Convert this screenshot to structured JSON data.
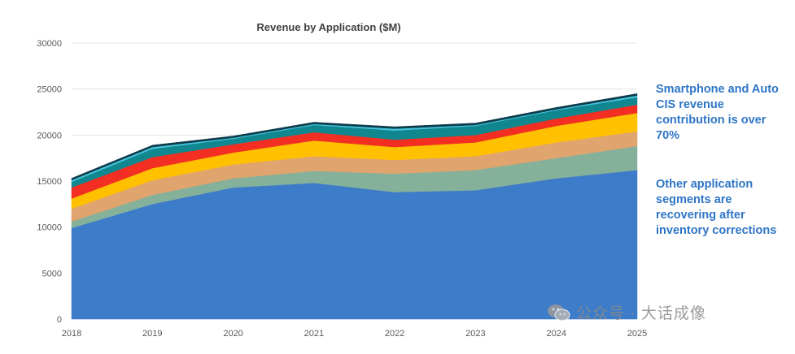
{
  "chart_data": {
    "type": "area",
    "stacked": true,
    "title": "Revenue by Application ($M)",
    "x": [
      "2018",
      "2019",
      "2020",
      "2021",
      "2022",
      "2023",
      "2024",
      "2025"
    ],
    "ylim": [
      0,
      30000
    ],
    "yticks": [
      0,
      5000,
      10000,
      15000,
      20000,
      25000,
      30000
    ],
    "grid": true,
    "legend": "none",
    "series": [
      {
        "color": "#3d7cc9",
        "values": [
          9900,
          12500,
          14300,
          14800,
          13800,
          14000,
          15300,
          16200
        ]
      },
      {
        "color": "#85b09a",
        "values": [
          700,
          1000,
          1000,
          1300,
          2000,
          2200,
          2200,
          2600
        ]
      },
      {
        "color": "#e0a46e",
        "values": [
          1400,
          1600,
          1500,
          1600,
          1500,
          1500,
          1700,
          1600
        ]
      },
      {
        "color": "#ffc000",
        "values": [
          1100,
          1300,
          1300,
          1700,
          1400,
          1500,
          1800,
          2000
        ]
      },
      {
        "color": "#f32e23",
        "values": [
          1200,
          1200,
          900,
          900,
          800,
          800,
          800,
          900
        ]
      },
      {
        "color": "#10878e",
        "values": [
          600,
          900,
          600,
          800,
          1000,
          1000,
          900,
          800
        ]
      },
      {
        "color": "#45c4dd",
        "values": [
          200,
          200,
          100,
          100,
          200,
          100,
          100,
          200
        ]
      },
      {
        "color": "#0d3c4c",
        "values": [
          200,
          200,
          200,
          200,
          200,
          200,
          200,
          200
        ]
      }
    ]
  },
  "callouts": [
    "Smartphone and Auto CIS revenue contribution is over 70%",
    "Other application segments are recovering after inventory corrections"
  ],
  "watermark": {
    "text": "公众号 · 大话成像",
    "icon": "wechat-icon"
  }
}
